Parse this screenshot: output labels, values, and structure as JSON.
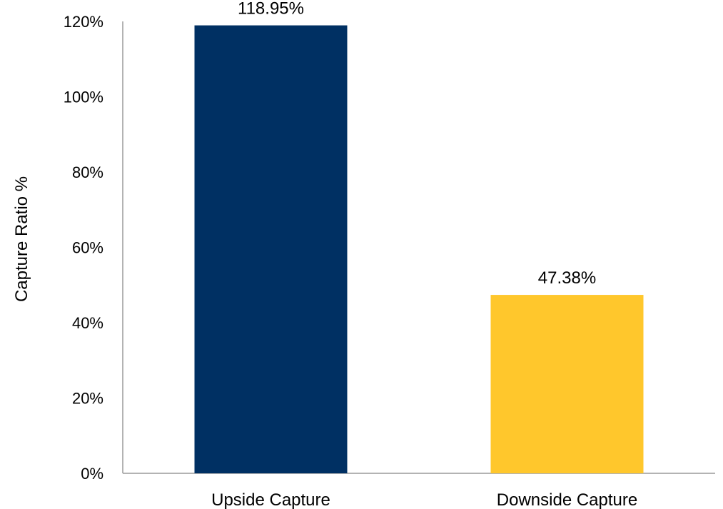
{
  "chart_data": {
    "type": "bar",
    "categories": [
      "Upside Capture",
      "Downside Capture"
    ],
    "values": [
      118.95,
      47.38
    ],
    "data_labels": [
      "118.95%",
      "47.38%"
    ],
    "bar_colors": [
      "#003063",
      "#FFC72C"
    ],
    "title": "",
    "xlabel": "",
    "ylabel": "Capture Ratio %",
    "ylim": [
      0,
      120
    ],
    "yticks": [
      0,
      20,
      40,
      60,
      80,
      100,
      120
    ],
    "ytick_labels": [
      "0%",
      "20%",
      "40%",
      "60%",
      "80%",
      "100%",
      "120%"
    ],
    "grid": false,
    "legend": "none"
  }
}
